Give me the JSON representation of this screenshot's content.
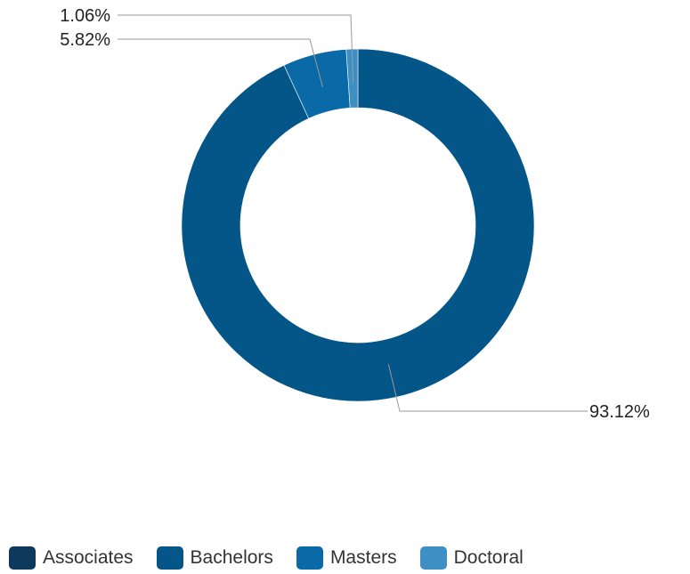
{
  "chart_data": {
    "type": "pie",
    "title": "",
    "donut": true,
    "categories": [
      "Associates",
      "Bachelors",
      "Masters",
      "Doctoral"
    ],
    "values": [
      0,
      93.12,
      5.82,
      1.06
    ],
    "labels": [
      "",
      "93.12%",
      "5.82%",
      "1.06%"
    ],
    "colors": [
      "#0d3a5c",
      "#045689",
      "#0a6aa8",
      "#3d8fc4"
    ],
    "legend_position": "bottom",
    "start_angle_deg": 0,
    "direction": "clockwise"
  }
}
